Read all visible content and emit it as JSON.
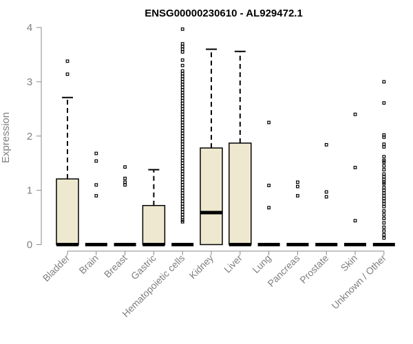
{
  "chart_data": {
    "type": "box",
    "title": "ENSG00000230610 - AL929472.1",
    "xlabel": "",
    "ylabel": "Expression",
    "ylim": [
      0,
      4
    ],
    "yticks": [
      "0",
      "1",
      "2",
      "3",
      "4"
    ],
    "grid": false,
    "colors": {
      "box_fill": "#EEE8D0",
      "stroke": "#000000",
      "axis": "#888888",
      "text_muted": "#7f7f7f"
    },
    "categories": [
      "Bladder",
      "Brain",
      "Breast",
      "Gastric",
      "Hematopoietic cells",
      "Kidney",
      "Liver",
      "Lung",
      "Pancreas",
      "Prostate",
      "Skin",
      "Unknown / Other"
    ],
    "boxes": [
      {
        "q1": 0,
        "median": 0,
        "q3": 1.21,
        "whisker_low": 0,
        "whisker_high": 2.71,
        "outliers": [
          3.38,
          3.14
        ]
      },
      {
        "q1": 0,
        "median": 0,
        "q3": 0,
        "whisker_low": 0,
        "whisker_high": 0,
        "outliers": [
          1.68,
          1.54,
          1.1,
          0.9
        ]
      },
      {
        "q1": 0,
        "median": 0,
        "q3": 0,
        "whisker_low": 0,
        "whisker_high": 0,
        "outliers": [
          1.43,
          1.22,
          1.15,
          1.1
        ]
      },
      {
        "q1": 0,
        "median": 0,
        "q3": 0.72,
        "whisker_low": 0,
        "whisker_high": 1.38,
        "outliers": []
      },
      {
        "q1": 0,
        "median": 0,
        "q3": 0,
        "whisker_low": 0,
        "whisker_high": 0,
        "outliers": [
          3.97,
          3.7,
          3.65,
          3.6,
          3.55,
          3.4,
          3.3,
          3.2,
          3.15,
          3.1,
          3.05,
          3.0,
          2.95,
          2.9,
          2.85,
          2.8,
          2.75,
          2.7,
          2.65,
          2.6,
          2.55,
          2.5,
          2.45,
          2.4,
          2.35,
          2.3,
          2.25,
          2.2,
          2.15,
          2.1,
          2.05,
          2.0,
          1.95,
          1.9,
          1.85,
          1.8,
          1.75,
          1.7,
          1.65,
          1.6,
          1.55,
          1.5,
          1.45,
          1.4,
          1.35,
          1.3,
          1.25,
          1.2,
          1.15,
          1.1,
          1.05,
          1.0,
          0.95,
          0.9,
          0.85,
          0.8,
          0.75,
          0.7,
          0.65,
          0.6,
          0.55,
          0.5,
          0.45,
          0.42
        ]
      },
      {
        "q1": 0,
        "median": 0.59,
        "q3": 1.78,
        "whisker_low": 0,
        "whisker_high": 3.6,
        "outliers": []
      },
      {
        "q1": 0,
        "median": 0,
        "q3": 1.87,
        "whisker_low": 0,
        "whisker_high": 3.56,
        "outliers": []
      },
      {
        "q1": 0,
        "median": 0,
        "q3": 0,
        "whisker_low": 0,
        "whisker_high": 0,
        "outliers": [
          2.25,
          1.09,
          0.68
        ]
      },
      {
        "q1": 0,
        "median": 0,
        "q3": 0,
        "whisker_low": 0,
        "whisker_high": 0,
        "outliers": [
          1.15,
          1.07,
          0.9
        ]
      },
      {
        "q1": 0,
        "median": 0,
        "q3": 0,
        "whisker_low": 0,
        "whisker_high": 0,
        "outliers": [
          1.84,
          0.97,
          0.88
        ]
      },
      {
        "q1": 0,
        "median": 0,
        "q3": 0,
        "whisker_low": 0,
        "whisker_high": 0,
        "outliers": [
          2.4,
          1.42,
          0.44
        ]
      },
      {
        "q1": 0,
        "median": 0,
        "q3": 0,
        "whisker_low": 0,
        "whisker_high": 0,
        "outliers": [
          3.0,
          2.61,
          2.02,
          1.98,
          1.85,
          1.8,
          1.62,
          1.55,
          1.52,
          1.45,
          1.38,
          1.3,
          1.25,
          1.2,
          1.15,
          1.12,
          1.05,
          1.0,
          0.95,
          0.9,
          0.85,
          0.8,
          0.75,
          0.7,
          0.62,
          0.55,
          0.48,
          0.4,
          0.32,
          0.25,
          0.18,
          0.12
        ]
      }
    ]
  }
}
